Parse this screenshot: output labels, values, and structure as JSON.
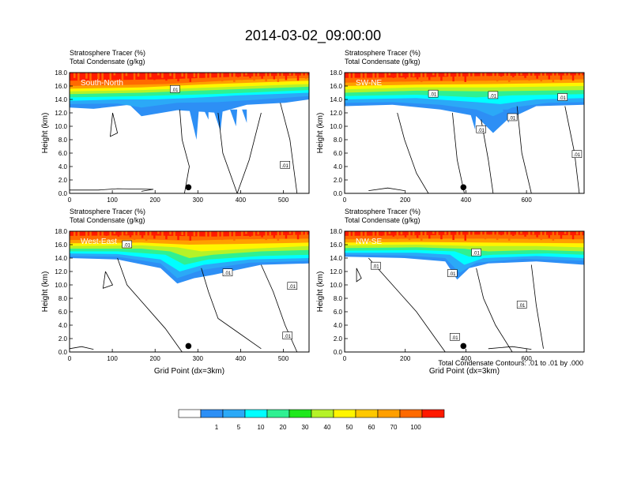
{
  "figure": {
    "title": "2014-03-02_09:00:00",
    "contour_note": "Total Condensate Contours: .01 to .01 by .000",
    "x_axis_label": "Grid Point (dx=3km)",
    "y_axis_label": "Height (km)"
  },
  "colorbar": {
    "labels": [
      "1",
      "5",
      "10",
      "20",
      "30",
      "40",
      "50",
      "60",
      "70",
      "100"
    ],
    "colors": [
      "#ffffff",
      "#2d8ff5",
      "#2ba9f7",
      "#00ffff",
      "#2ff092",
      "#1fe81c",
      "#b5f228",
      "#fff500",
      "#ffc800",
      "#ff9f00",
      "#ff6a00",
      "#ff1a00"
    ]
  },
  "chart_data": [
    {
      "type": "heatmap",
      "panel_label": "South-North",
      "subtitle_line1": "Stratosphere Tracer   (%)",
      "subtitle_line2": "Total Condensate   (g/kg)",
      "ylabel": "Height (km)",
      "xlabel": "",
      "xlim": [
        0,
        560
      ],
      "ylim": [
        0,
        18
      ],
      "xticks": [
        "0",
        "100",
        "200",
        "300",
        "400",
        "500"
      ],
      "yticks": [
        "0.0",
        "2.0",
        "4.0",
        "6.0",
        "8.0",
        "10.0",
        "12.0",
        "14.0",
        "16.0",
        "18.0"
      ],
      "contour_labels": [
        ".01",
        ".01"
      ],
      "marker_x": 278
    },
    {
      "type": "heatmap",
      "panel_label": "SW-NE",
      "subtitle_line1": "Stratosphere Tracer   (%)",
      "subtitle_line2": "Total Condensate   (g/kg)",
      "ylabel": "Height (km)",
      "xlabel": "",
      "xlim": [
        0,
        790
      ],
      "ylim": [
        0,
        18
      ],
      "xticks": [
        "0",
        "200",
        "400",
        "600"
      ],
      "yticks": [
        "0.0",
        "2.0",
        "4.0",
        "6.0",
        "8.0",
        "10.0",
        "12.0",
        "14.0",
        "16.0",
        "18.0"
      ],
      "contour_labels": [
        ".01",
        ".01",
        ".01",
        ".01",
        ".01",
        ".01"
      ],
      "marker_x": 392
    },
    {
      "type": "heatmap",
      "panel_label": "West-East",
      "subtitle_line1": "Stratosphere Tracer   (%)",
      "subtitle_line2": "Total Condensate   (g/kg)",
      "ylabel": "Height (km)",
      "xlabel": "Grid Point (dx=3km)",
      "xlim": [
        0,
        560
      ],
      "ylim": [
        0,
        18
      ],
      "xticks": [
        "0",
        "100",
        "200",
        "300",
        "400",
        "500"
      ],
      "yticks": [
        "0.0",
        "2.0",
        "4.0",
        "6.0",
        "8.0",
        "10.0",
        "12.0",
        "14.0",
        "16.0",
        "18.0"
      ],
      "contour_labels": [
        ".01",
        ".01",
        ".01",
        ".01"
      ],
      "marker_x": 278
    },
    {
      "type": "heatmap",
      "panel_label": "NW-SE",
      "subtitle_line1": "Stratosphere Tracer   (%)",
      "subtitle_line2": "Total Condensate   (g/kg)",
      "ylabel": "Height (km)",
      "xlabel": "Grid Point (dx=3km)",
      "xlim": [
        0,
        790
      ],
      "ylim": [
        0,
        18
      ],
      "xticks": [
        "0",
        "200",
        "400",
        "600"
      ],
      "yticks": [
        "0.0",
        "2.0",
        "4.0",
        "6.0",
        "8.0",
        "10.0",
        "12.0",
        "14.0",
        "16.0",
        "18.0"
      ],
      "contour_labels": [
        ".01",
        ".01",
        ".01",
        ".01",
        ".01"
      ],
      "marker_x": 392
    }
  ]
}
